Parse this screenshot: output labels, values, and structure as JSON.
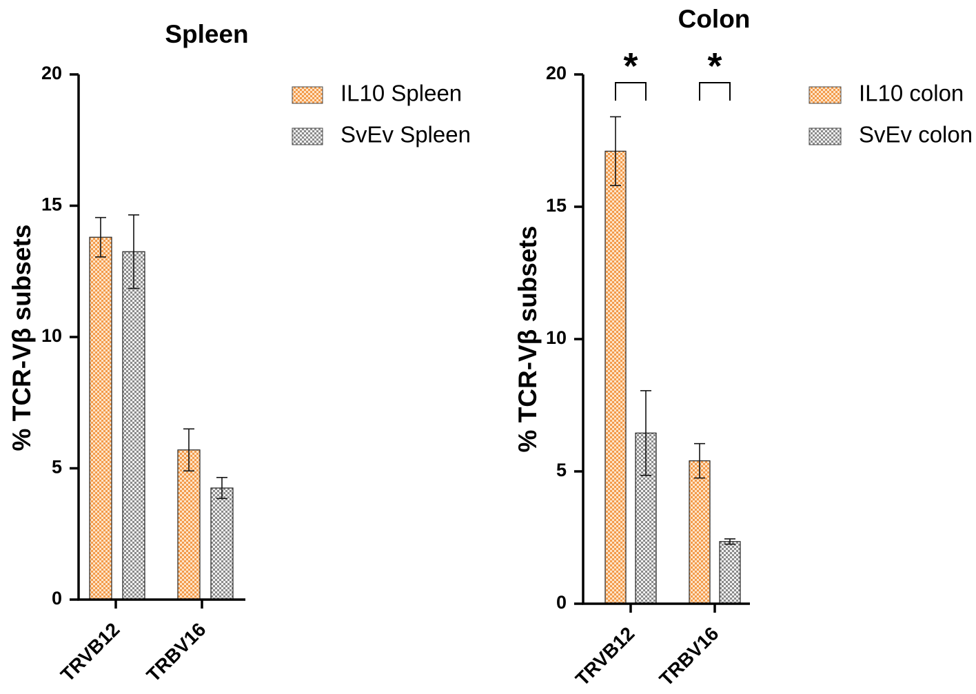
{
  "chart_data": [
    {
      "type": "bar",
      "title": "Spleen",
      "ylabel": "% TCR-Vβ subsets",
      "xlabel": "",
      "categories": [
        "TRVB12",
        "TRBV16"
      ],
      "ylim": [
        0,
        20
      ],
      "yticks": [
        0,
        5,
        10,
        15,
        20
      ],
      "grid": false,
      "legend_position": "right",
      "series": [
        {
          "name": "IL10 Spleen",
          "values": [
            13.8,
            5.7
          ],
          "errors": [
            0.75,
            0.8
          ],
          "color": "#f4a460",
          "pattern": "checker-orange"
        },
        {
          "name": "SvEv Spleen",
          "values": [
            13.25,
            4.25
          ],
          "errors": [
            1.4,
            0.4
          ],
          "color": "#9a9a9a",
          "pattern": "checker-gray"
        }
      ],
      "significance": []
    },
    {
      "type": "bar",
      "title": "Colon",
      "ylabel": "% TCR-Vβ subsets",
      "xlabel": "",
      "categories": [
        "TRVB12",
        "TRBV16"
      ],
      "ylim": [
        0,
        20
      ],
      "yticks": [
        0,
        5,
        10,
        15,
        20
      ],
      "grid": false,
      "legend_position": "right",
      "series": [
        {
          "name": "IL10 colon",
          "values": [
            17.1,
            5.4
          ],
          "errors": [
            1.3,
            0.65
          ],
          "color": "#f4a460",
          "pattern": "checker-orange"
        },
        {
          "name": "SvEv colon",
          "values": [
            6.45,
            2.35
          ],
          "errors": [
            1.6,
            0.1
          ],
          "color": "#9a9a9a",
          "pattern": "checker-gray"
        }
      ],
      "significance": [
        {
          "category": "TRVB12",
          "label": "*"
        },
        {
          "category": "TRBV16",
          "label": "*"
        }
      ]
    }
  ]
}
